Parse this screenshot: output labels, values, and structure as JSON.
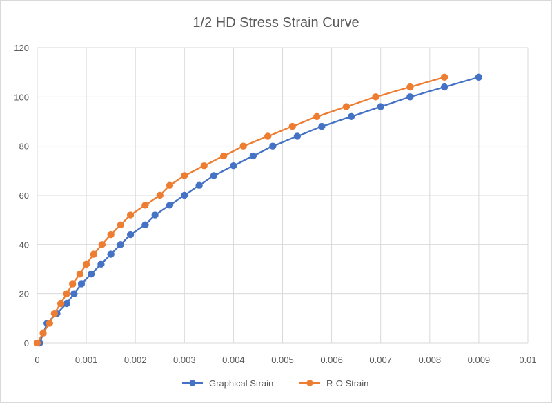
{
  "chart_data": {
    "type": "scatter",
    "title": "1/2 HD Stress Strain Curve",
    "xlabel": "",
    "ylabel": "",
    "xlim": [
      0,
      0.01
    ],
    "ylim": [
      0,
      120
    ],
    "x_ticks": [
      "0",
      "0.001",
      "0.002",
      "0.003",
      "0.004",
      "0.005",
      "0.006",
      "0.007",
      "0.008",
      "0.009",
      "0.01"
    ],
    "y_ticks": [
      "0",
      "20",
      "40",
      "60",
      "80",
      "100",
      "120"
    ],
    "grid": true,
    "legend_position": "bottom",
    "series": [
      {
        "name": "Graphical Strain",
        "color": "#4472c4",
        "points": [
          [
            5e-05,
            0
          ],
          [
            0.0002,
            8
          ],
          [
            0.0004,
            12
          ],
          [
            0.0006,
            16
          ],
          [
            0.00075,
            20
          ],
          [
            0.0009,
            24
          ],
          [
            0.0011,
            28
          ],
          [
            0.0013,
            32
          ],
          [
            0.0015,
            36
          ],
          [
            0.0017,
            40
          ],
          [
            0.0019,
            44
          ],
          [
            0.0022,
            48
          ],
          [
            0.0024,
            52
          ],
          [
            0.0027,
            56
          ],
          [
            0.003,
            60
          ],
          [
            0.0033,
            64
          ],
          [
            0.0036,
            68
          ],
          [
            0.004,
            72
          ],
          [
            0.0044,
            76
          ],
          [
            0.0048,
            80
          ],
          [
            0.0053,
            84
          ],
          [
            0.0058,
            88
          ],
          [
            0.0064,
            92
          ],
          [
            0.007,
            96
          ],
          [
            0.0076,
            100
          ],
          [
            0.0083,
            104
          ],
          [
            0.009,
            108
          ]
        ]
      },
      {
        "name": "R-O Strain",
        "color": "#ed7d31",
        "points": [
          [
            0,
            0
          ],
          [
            0.00012,
            4
          ],
          [
            0.00025,
            8
          ],
          [
            0.00035,
            12
          ],
          [
            0.00048,
            16
          ],
          [
            0.0006,
            20
          ],
          [
            0.00072,
            24
          ],
          [
            0.00087,
            28
          ],
          [
            0.001,
            32
          ],
          [
            0.00115,
            36
          ],
          [
            0.00132,
            40
          ],
          [
            0.0015,
            44
          ],
          [
            0.0017,
            48
          ],
          [
            0.0019,
            52
          ],
          [
            0.0022,
            56
          ],
          [
            0.0025,
            60
          ],
          [
            0.0027,
            64
          ],
          [
            0.003,
            68
          ],
          [
            0.0034,
            72
          ],
          [
            0.0038,
            76
          ],
          [
            0.0042,
            80
          ],
          [
            0.0047,
            84
          ],
          [
            0.0052,
            88
          ],
          [
            0.0057,
            92
          ],
          [
            0.0063,
            96
          ],
          [
            0.0069,
            100
          ],
          [
            0.0076,
            104
          ],
          [
            0.0083,
            108
          ]
        ]
      }
    ]
  }
}
